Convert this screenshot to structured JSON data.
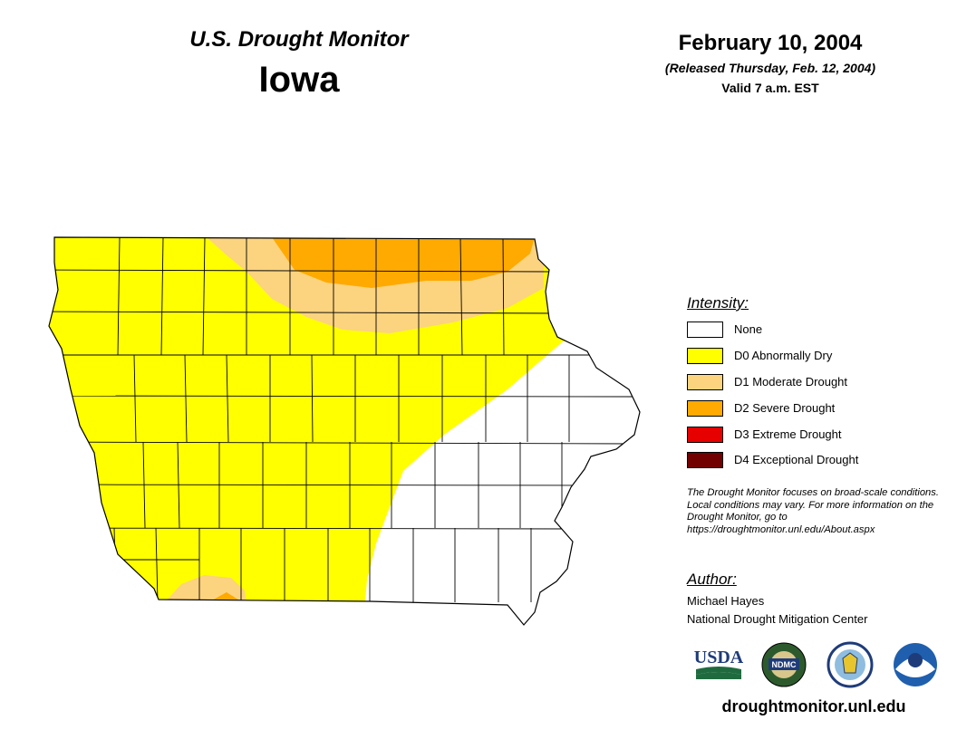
{
  "header": {
    "title": "U.S. Drought Monitor",
    "state": "Iowa",
    "date": "February 10, 2004",
    "released": "(Released Thursday, Feb. 12, 2004)",
    "valid": "Valid 7 a.m. EST"
  },
  "legend": {
    "title": "Intensity:",
    "items": [
      {
        "label": "None",
        "color": "#ffffff"
      },
      {
        "label": "D0 Abnormally Dry",
        "color": "#ffff00"
      },
      {
        "label": "D1 Moderate Drought",
        "color": "#fcd37f"
      },
      {
        "label": "D2 Severe Drought",
        "color": "#ffaa00"
      },
      {
        "label": "D3 Extreme Drought",
        "color": "#e60000"
      },
      {
        "label": "D4 Exceptional Drought",
        "color": "#730000"
      }
    ]
  },
  "disclaimer": "The Drought Monitor focuses on broad-scale conditions. Local conditions may vary. For more information on the Drought Monitor, go to https://droughtmonitor.unl.edu/About.aspx",
  "author": {
    "title": "Author:",
    "name": "Michael Hayes",
    "organization": "National Drought Mitigation Center"
  },
  "logos": {
    "usda": "USDA",
    "ndmc": "NDMC",
    "doc_icon": "doc-seal-icon",
    "noaa_icon": "noaa-logo-icon"
  },
  "site_url": "droughtmonitor.unl.edu"
}
